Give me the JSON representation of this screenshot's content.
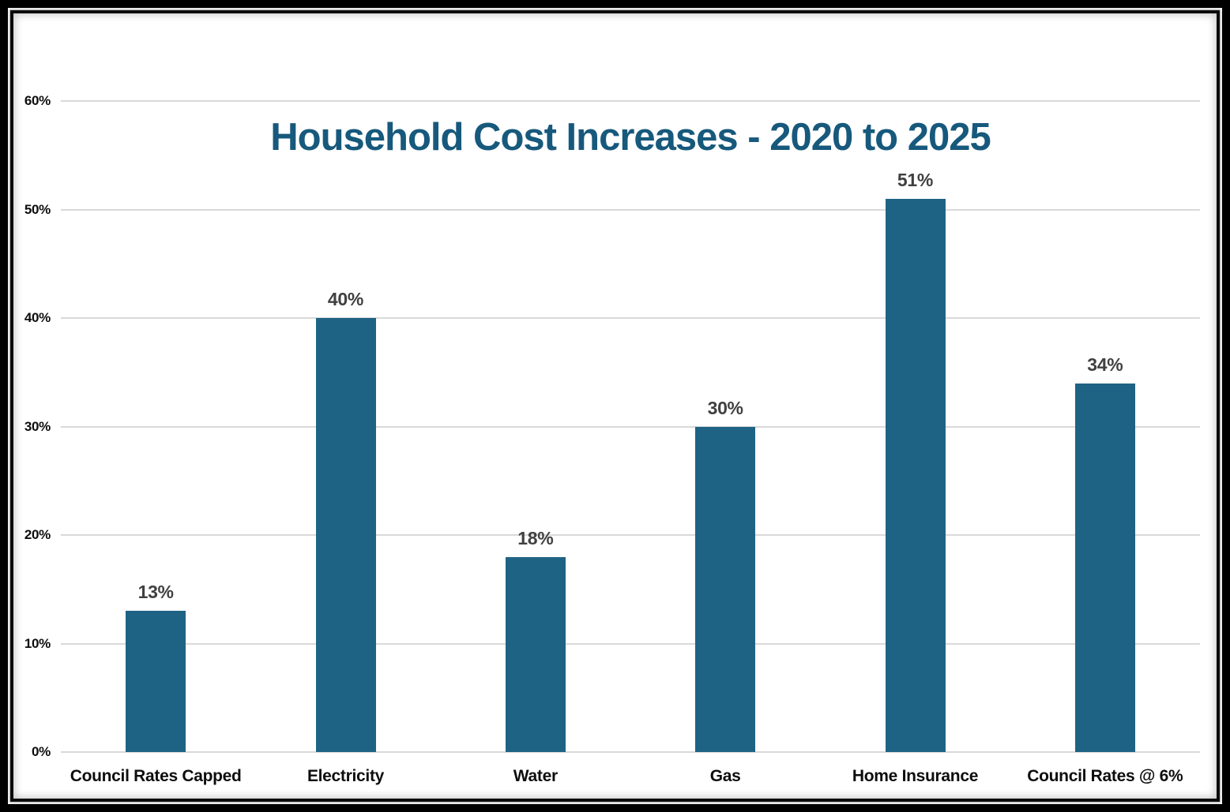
{
  "chart_data": {
    "type": "bar",
    "title": "Household Cost Increases - 2020 to 2025",
    "categories": [
      "Council Rates Capped",
      "Electricity",
      "Water",
      "Gas",
      "Home Insurance",
      "Council Rates @ 6%"
    ],
    "values": [
      13,
      40,
      18,
      30,
      51,
      34
    ],
    "value_labels": [
      "13%",
      "40%",
      "18%",
      "30%",
      "51%",
      "34%"
    ],
    "yticks": [
      0,
      10,
      20,
      30,
      40,
      50,
      60
    ],
    "ytick_labels": [
      "0%",
      "10%",
      "20%",
      "30%",
      "40%",
      "50%",
      "60%"
    ],
    "ylim": [
      0,
      60
    ],
    "xlabel": "",
    "ylabel": "",
    "grid": true,
    "legend": false,
    "layout_hints": {
      "orientation": "vertical",
      "value_labels_position": "above-bars",
      "gridlines": "horizontal-only"
    },
    "colors": {
      "bar": "#1F6384",
      "title": "#17597C",
      "value_label": "#404040",
      "axis_label": "#0D0D0D",
      "gridline": "#D9D9D9",
      "background": "#FFFFFF",
      "frame": "#000000"
    }
  }
}
